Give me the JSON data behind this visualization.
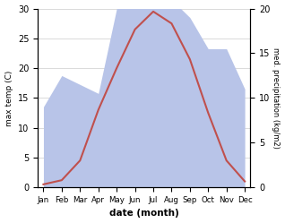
{
  "months": [
    "Jan",
    "Feb",
    "Mar",
    "Apr",
    "May",
    "Jun",
    "Jul",
    "Aug",
    "Sep",
    "Oct",
    "Nov",
    "Dec"
  ],
  "temperature": [
    0.5,
    1.2,
    4.5,
    13.0,
    20.0,
    26.5,
    29.5,
    27.5,
    21.5,
    12.5,
    4.5,
    1.0
  ],
  "precipitation_mm": [
    9.0,
    12.5,
    11.5,
    10.5,
    20.0,
    20.5,
    21.0,
    21.0,
    19.0,
    15.5,
    15.5,
    11.0
  ],
  "temp_color": "#c0504d",
  "precip_color_fill": "#b8c4e8",
  "temp_ylim": [
    0,
    30
  ],
  "precip_ylim": [
    0,
    20
  ],
  "xlabel": "date (month)",
  "ylabel_left": "max temp (C)",
  "ylabel_right": "med. precipitation (kg/m2)",
  "background_color": "#ffffff"
}
